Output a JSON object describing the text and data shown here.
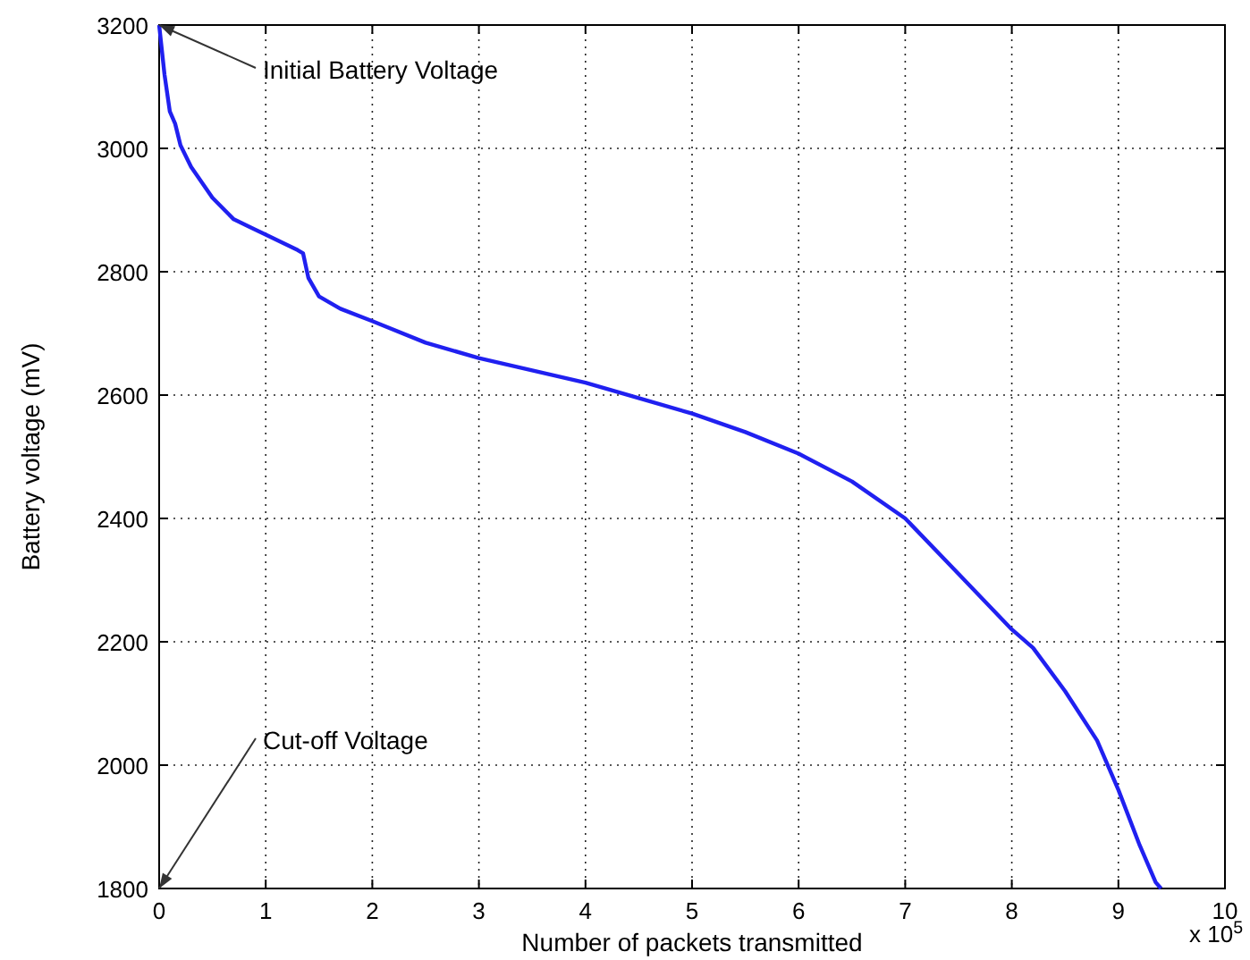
{
  "chart_data": {
    "type": "line",
    "xlabel": "Number of packets transmitted",
    "ylabel": "Battery voltage  (mV)",
    "annotations": [
      {
        "text": "Initial Battery Voltage",
        "x": 0,
        "y": 3200
      },
      "Cut-off Voltage",
      "x 10$^{5}$"
    ],
    "x": [
      0,
      0.05,
      0.1,
      0.15,
      0.2,
      0.3,
      0.5,
      0.7,
      1.0,
      1.3,
      1.35,
      1.4,
      1.5,
      1.7,
      2.0,
      2.5,
      3.0,
      3.5,
      4.0,
      4.5,
      5.0,
      5.5,
      6.0,
      6.5,
      7.0,
      7.5,
      8.0,
      8.2,
      8.5,
      8.8,
      9.0,
      9.2,
      9.35,
      9.4
    ],
    "series": [
      {
        "color": "#2020f0",
        "values": [
          3200,
          3120,
          3060,
          3040,
          3005,
          2970,
          2920,
          2885,
          2860,
          2835,
          2830,
          2790,
          2760,
          2740,
          2720,
          2685,
          2660,
          2640,
          2620,
          2595,
          2570,
          2540,
          2505,
          2460,
          2400,
          2310,
          2220,
          2190,
          2120,
          2040,
          1960,
          1870,
          1810,
          1800
        ]
      }
    ],
    "xlim": [
      0,
      10
    ],
    "xticks": [
      0,
      1,
      2,
      3,
      4,
      5,
      6,
      7,
      8,
      9,
      10
    ],
    "ylim": [
      1800,
      3200
    ],
    "yticks": [
      1800,
      2000,
      2200,
      2400,
      2600,
      2800,
      3000,
      3200
    ],
    "grid": true,
    "line_style": "solid",
    "marker": "none"
  }
}
